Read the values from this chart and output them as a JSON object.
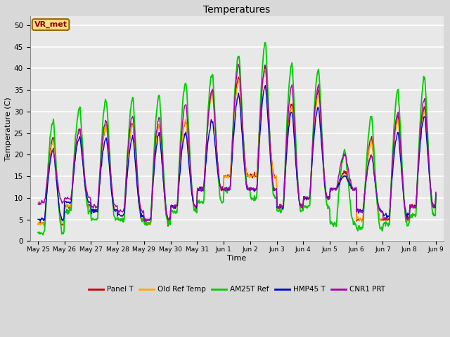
{
  "title": "Temperatures",
  "xlabel": "Time",
  "ylabel": "Temperature (C)",
  "ylim": [
    0,
    52
  ],
  "yticks": [
    0,
    5,
    10,
    15,
    20,
    25,
    30,
    35,
    40,
    45,
    50
  ],
  "fig_bg_color": "#d8d8d8",
  "plot_bg_color": "#e8e8e8",
  "grid_color": "#ffffff",
  "station_label": "VR_met",
  "series": {
    "Panel T": {
      "color": "#cc0000",
      "lw": 1.0
    },
    "Old Ref Temp": {
      "color": "#ffaa00",
      "lw": 1.0
    },
    "AM25T Ref": {
      "color": "#00cc00",
      "lw": 1.3
    },
    "HMP45 T": {
      "color": "#0000cc",
      "lw": 1.0
    },
    "CNR1 PRT": {
      "color": "#aa00aa",
      "lw": 1.0
    }
  },
  "xtick_labels": [
    "May 25",
    "May 26",
    "May 27",
    "May 28",
    "May 29",
    "May 30",
    "May 31",
    "Jun 1",
    "Jun 2",
    "Jun 3",
    "Jun 4",
    "Jun 5",
    "Jun 6",
    "Jun 7",
    "Jun 8",
    "Jun 9"
  ]
}
